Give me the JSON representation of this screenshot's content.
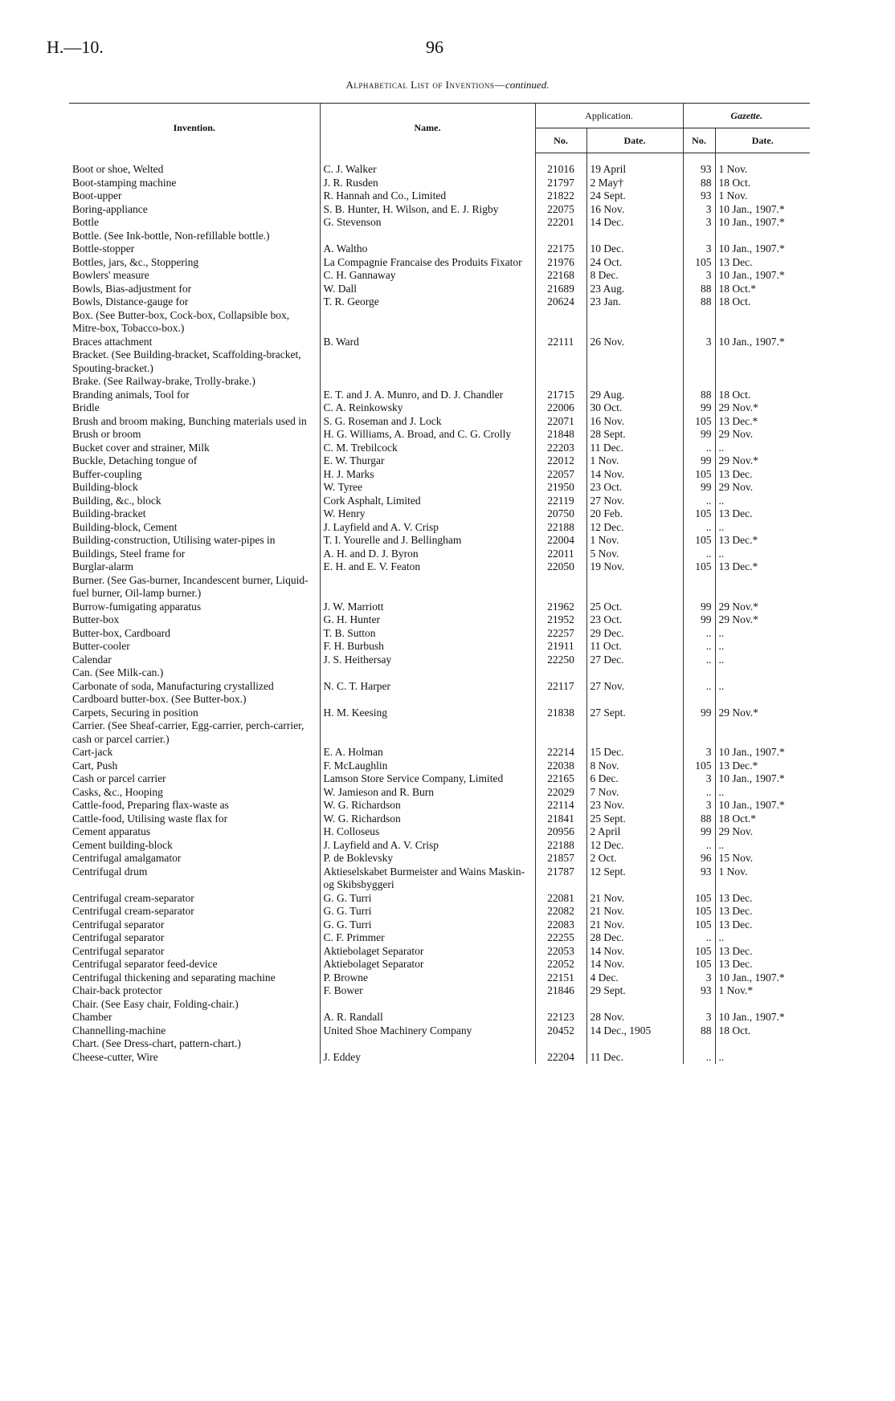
{
  "header": {
    "code": "H.—10.",
    "page": "96",
    "title": "Alphabetical List of Inventions—",
    "title_suffix": "continued."
  },
  "columns": {
    "invention": "Invention.",
    "name": "Name.",
    "application": "Application.",
    "app_no": "No.",
    "app_date": "Date.",
    "gazette": "Gazette.",
    "gaz_no": "No.",
    "gaz_date": "Date."
  },
  "rows": [
    [
      "Boot or shoe, Welted",
      "C. J. Walker",
      "21016",
      "19 April",
      "93",
      "1 Nov."
    ],
    [
      "Boot-stamping machine",
      "J. R. Rusden",
      "21797",
      "2 May†",
      "88",
      "18 Oct."
    ],
    [
      "Boot-upper",
      "R. Hannah and Co., Limited",
      "21822",
      "24 Sept.",
      "93",
      "1 Nov."
    ],
    [
      "Boring-appliance",
      "S. B. Hunter, H. Wilson, and E. J. Rigby",
      "22075",
      "16 Nov.",
      "3",
      "10 Jan., 1907.*"
    ],
    [
      "Bottle",
      "G. Stevenson",
      "22201",
      "14 Dec.",
      "3",
      "10 Jan., 1907.*"
    ],
    [
      "Bottle. (See Ink-bottle, Non-refillable bottle.)"
    ],
    [
      "Bottle-stopper",
      "A. Waltho",
      "22175",
      "10 Dec.",
      "3",
      "10 Jan., 1907.*"
    ],
    [
      "Bottles, jars, &c., Stoppering",
      "La Compagnie Francaise des Produits Fixator",
      "21976",
      "24 Oct.",
      "105",
      "13 Dec."
    ],
    [
      "Bowlers' measure",
      "C. H. Gannaway",
      "22168",
      "8 Dec.",
      "3",
      "10 Jan., 1907.*"
    ],
    [
      "Bowls, Bias-adjustment for",
      "W. Dall",
      "21689",
      "23 Aug.",
      "88",
      "18 Oct.*"
    ],
    [
      "Bowls, Distance-gauge for",
      "T. R. George",
      "20624",
      "23 Jan.",
      "88",
      "18 Oct."
    ],
    [
      "Box. (See Butter-box, Cock-box, Collapsible box, Mitre-box, Tobacco-box.)"
    ],
    [
      "Braces attachment",
      "B. Ward",
      "22111",
      "26 Nov.",
      "3",
      "10 Jan., 1907.*"
    ],
    [
      "Bracket. (See Building-bracket, Scaffolding-bracket, Spouting-bracket.)"
    ],
    [
      "Brake. (See Railway-brake, Trolly-brake.)"
    ],
    [
      "Branding animals, Tool for",
      "E. T. and J. A. Munro, and D. J. Chandler",
      "21715",
      "29 Aug.",
      "88",
      "18 Oct."
    ],
    [
      "Bridle",
      "C. A. Reinkowsky",
      "22006",
      "30 Oct.",
      "99",
      "29 Nov.*"
    ],
    [
      "Brush and broom making, Bunching materials used in",
      "S. G. Roseman and J. Lock",
      "22071",
      "16 Nov.",
      "105",
      "13 Dec.*"
    ],
    [
      "Brush or broom",
      "H. G. Williams, A. Broad, and C. G. Crolly",
      "21848",
      "28 Sept.",
      "99",
      "29 Nov."
    ],
    [
      "Bucket cover and strainer, Milk",
      "C. M. Trebilcock",
      "22203",
      "11 Dec.",
      "..",
      ".."
    ],
    [
      "Buckle, Detaching tongue of",
      "E. W. Thurgar",
      "22012",
      "1 Nov.",
      "99",
      "29 Nov.*"
    ],
    [
      "Buffer-coupling",
      "H. J. Marks",
      "22057",
      "14 Nov.",
      "105",
      "13 Dec."
    ],
    [
      "Building-block",
      "W. Tyree",
      "21950",
      "23 Oct.",
      "99",
      "29 Nov."
    ],
    [
      "Building, &c., block",
      "Cork Asphalt, Limited",
      "22119",
      "27 Nov.",
      "..",
      ".."
    ],
    [
      "Building-bracket",
      "W. Henry",
      "20750",
      "20 Feb.",
      "105",
      "13 Dec."
    ],
    [
      "Building-block, Cement",
      "J. Layfield and A. V. Crisp",
      "22188",
      "12 Dec.",
      "..",
      ".."
    ],
    [
      "Building-construction, Utilising water-pipes in",
      "T. I. Yourelle and J. Bellingham",
      "22004",
      "1 Nov.",
      "105",
      "13 Dec.*"
    ],
    [
      "Buildings, Steel frame for",
      "A. H. and D. J. Byron",
      "22011",
      "5 Nov.",
      "..",
      ".."
    ],
    [
      "Burglar-alarm",
      "E. H. and E. V. Featon",
      "22050",
      "19 Nov.",
      "105",
      "13 Dec.*"
    ],
    [
      "Burner. (See Gas-burner, Incandescent burner, Liquid-fuel burner, Oil-lamp burner.)"
    ],
    [
      "Burrow-fumigating apparatus",
      "J. W. Marriott",
      "21962",
      "25 Oct.",
      "99",
      "29 Nov.*"
    ],
    [
      "Butter-box",
      "G. H. Hunter",
      "21952",
      "23 Oct.",
      "99",
      "29 Nov.*"
    ],
    [
      "Butter-box, Cardboard",
      "T. B. Sutton",
      "22257",
      "29 Dec.",
      "..",
      ".."
    ],
    [
      "Butter-cooler",
      "F. H. Burbush",
      "21911",
      "11 Oct.",
      "..",
      ".."
    ],
    [
      "Calendar",
      "J. S. Heithersay",
      "22250",
      "27 Dec.",
      "..",
      ".."
    ],
    [
      "Can. (See Milk-can.)"
    ],
    [
      "Carbonate of soda, Manufacturing crystallized",
      "N. C. T. Harper",
      "22117",
      "27 Nov.",
      "..",
      ".."
    ],
    [
      "Cardboard butter-box. (See Butter-box.)"
    ],
    [
      "Carpets, Securing in position",
      "H. M. Keesing",
      "21838",
      "27 Sept.",
      "99",
      "29 Nov.*"
    ],
    [
      "Carrier. (See Sheaf-carrier, Egg-carrier, perch-carrier, cash or parcel carrier.)"
    ],
    [
      "Cart-jack",
      "E. A. Holman",
      "22214",
      "15 Dec.",
      "3",
      "10 Jan., 1907.*"
    ],
    [
      "Cart, Push",
      "F. McLaughlin",
      "22038",
      "8 Nov.",
      "105",
      "13 Dec.*"
    ],
    [
      "Cash or parcel carrier",
      "Lamson Store Service Company, Limited",
      "22165",
      "6 Dec.",
      "3",
      "10 Jan., 1907.*"
    ],
    [
      "Casks, &c., Hooping",
      "W. Jamieson and R. Burn",
      "22029",
      "7 Nov.",
      "..",
      ".."
    ],
    [
      "Cattle-food, Preparing flax-waste as",
      "W. G. Richardson",
      "22114",
      "23 Nov.",
      "3",
      "10 Jan., 1907.*"
    ],
    [
      "Cattle-food, Utilising waste flax for",
      "W. G. Richardson",
      "21841",
      "25 Sept.",
      "88",
      "18 Oct.*"
    ],
    [
      "Cement apparatus",
      "H. Colloseus",
      "20956",
      "2 April",
      "99",
      "29 Nov."
    ],
    [
      "Cement building-block",
      "J. Layfield and A. V. Crisp",
      "22188",
      "12 Dec.",
      "..",
      ".."
    ],
    [
      "Centrifugal amalgamator",
      "P. de Boklevsky",
      "21857",
      "2 Oct.",
      "96",
      "15 Nov."
    ],
    [
      "Centrifugal drum",
      "Aktieselskabet Burmeister and Wains Maskin-og Skibsbyggeri",
      "21787",
      "12 Sept.",
      "93",
      "1 Nov."
    ],
    [
      "Centrifugal cream-separator",
      "G. G. Turri",
      "22081",
      "21 Nov.",
      "105",
      "13 Dec."
    ],
    [
      "Centrifugal cream-separator",
      "G. G. Turri",
      "22082",
      "21 Nov.",
      "105",
      "13 Dec."
    ],
    [
      "Centrifugal separator",
      "G. G. Turri",
      "22083",
      "21 Nov.",
      "105",
      "13 Dec."
    ],
    [
      "Centrifugal separator",
      "C. F. Primmer",
      "22255",
      "28 Dec.",
      "..",
      ".."
    ],
    [
      "Centrifugal separator",
      "Aktiebolaget Separator",
      "22053",
      "14 Nov.",
      "105",
      "13 Dec."
    ],
    [
      "Centrifugal separator feed-device",
      "Aktiebolaget Separator",
      "22052",
      "14 Nov.",
      "105",
      "13 Dec."
    ],
    [
      "Centrifugal thickening and separating machine",
      "P. Browne",
      "22151",
      "4 Dec.",
      "3",
      "10 Jan., 1907.*"
    ],
    [
      "Chair-back protector",
      "F. Bower",
      "21846",
      "29 Sept.",
      "93",
      "1 Nov.*"
    ],
    [
      "Chair. (See Easy chair, Folding-chair.)"
    ],
    [
      "Chamber",
      "A. R. Randall",
      "22123",
      "28 Nov.",
      "3",
      "10 Jan., 1907.*"
    ],
    [
      "Channelling-machine",
      "United Shoe Machinery Company",
      "20452",
      "14 Dec., 1905",
      "88",
      "18 Oct."
    ],
    [
      "Chart. (See Dress-chart, pattern-chart.)"
    ],
    [
      "Cheese-cutter, Wire",
      "J. Eddey",
      "22204",
      "11 Dec.",
      "..",
      ".."
    ]
  ]
}
